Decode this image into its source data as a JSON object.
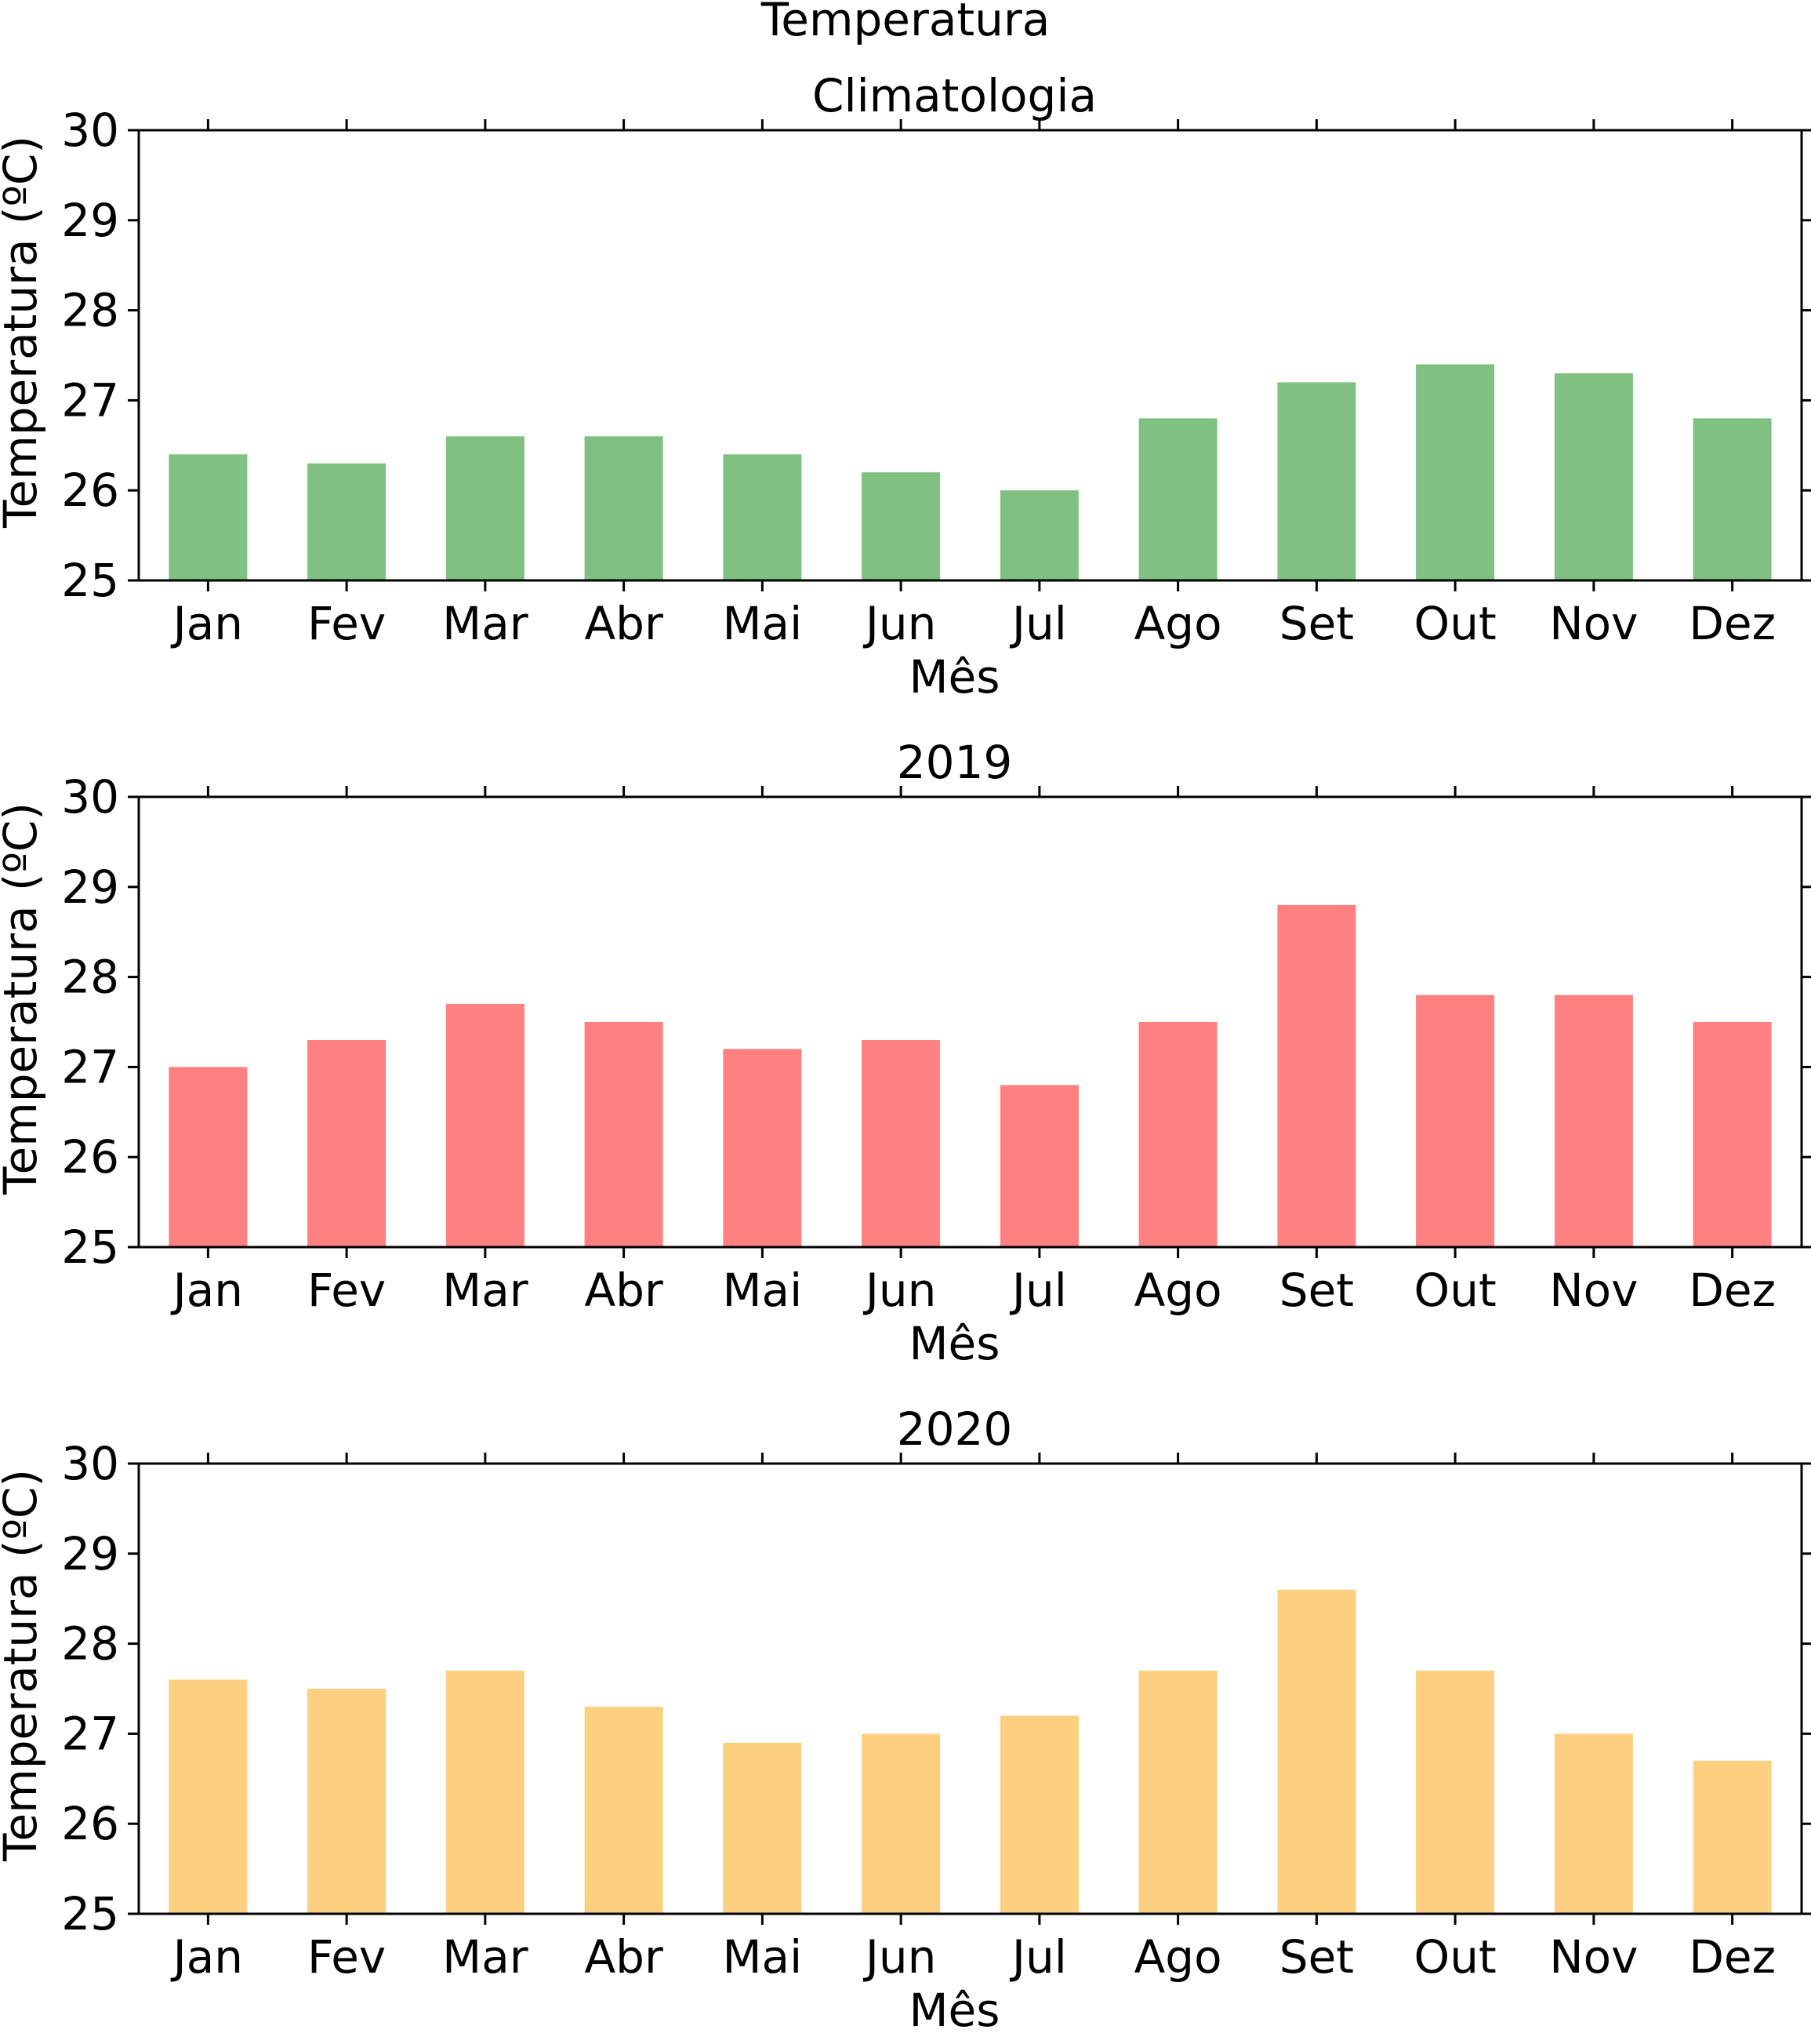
{
  "figure": {
    "title": "Temperatura"
  },
  "chart_data": [
    {
      "type": "bar",
      "title": "Climatologia",
      "xlabel": "Mês",
      "ylabel": "Temperatura (ºC)",
      "ylim": [
        25,
        30
      ],
      "yticks": [
        "25",
        "26",
        "27",
        "28",
        "29",
        "30"
      ],
      "categories": [
        "Jan",
        "Fev",
        "Mar",
        "Abr",
        "Mai",
        "Jun",
        "Jul",
        "Ago",
        "Set",
        "Out",
        "Nov",
        "Dez"
      ],
      "values": [
        26.4,
        26.3,
        26.6,
        26.6,
        26.4,
        26.2,
        26.0,
        26.8,
        27.2,
        27.4,
        27.3,
        26.8
      ],
      "color": "#80c080",
      "grid": false
    },
    {
      "type": "bar",
      "title": "2019",
      "xlabel": "Mês",
      "ylabel": "Temperatura (ºC)",
      "ylim": [
        25,
        30
      ],
      "yticks": [
        "25",
        "26",
        "27",
        "28",
        "29",
        "30"
      ],
      "categories": [
        "Jan",
        "Fev",
        "Mar",
        "Abr",
        "Mai",
        "Jun",
        "Jul",
        "Ago",
        "Set",
        "Out",
        "Nov",
        "Dez"
      ],
      "values": [
        27.0,
        27.3,
        27.7,
        27.5,
        27.2,
        27.3,
        26.8,
        27.5,
        28.8,
        27.8,
        27.8,
        27.5
      ],
      "color": "#ff8080",
      "grid": false
    },
    {
      "type": "bar",
      "title": "2020",
      "xlabel": "Mês",
      "ylabel": "Temperatura (ºC)",
      "ylim": [
        25,
        30
      ],
      "yticks": [
        "25",
        "26",
        "27",
        "28",
        "29",
        "30"
      ],
      "categories": [
        "Jan",
        "Fev",
        "Mar",
        "Abr",
        "Mai",
        "Jun",
        "Jul",
        "Ago",
        "Set",
        "Out",
        "Nov",
        "Dez"
      ],
      "values": [
        27.6,
        27.5,
        27.7,
        27.3,
        26.9,
        27.0,
        27.2,
        27.7,
        28.6,
        27.7,
        27.0,
        26.7
      ],
      "color": "#fcd080",
      "grid": false
    }
  ]
}
